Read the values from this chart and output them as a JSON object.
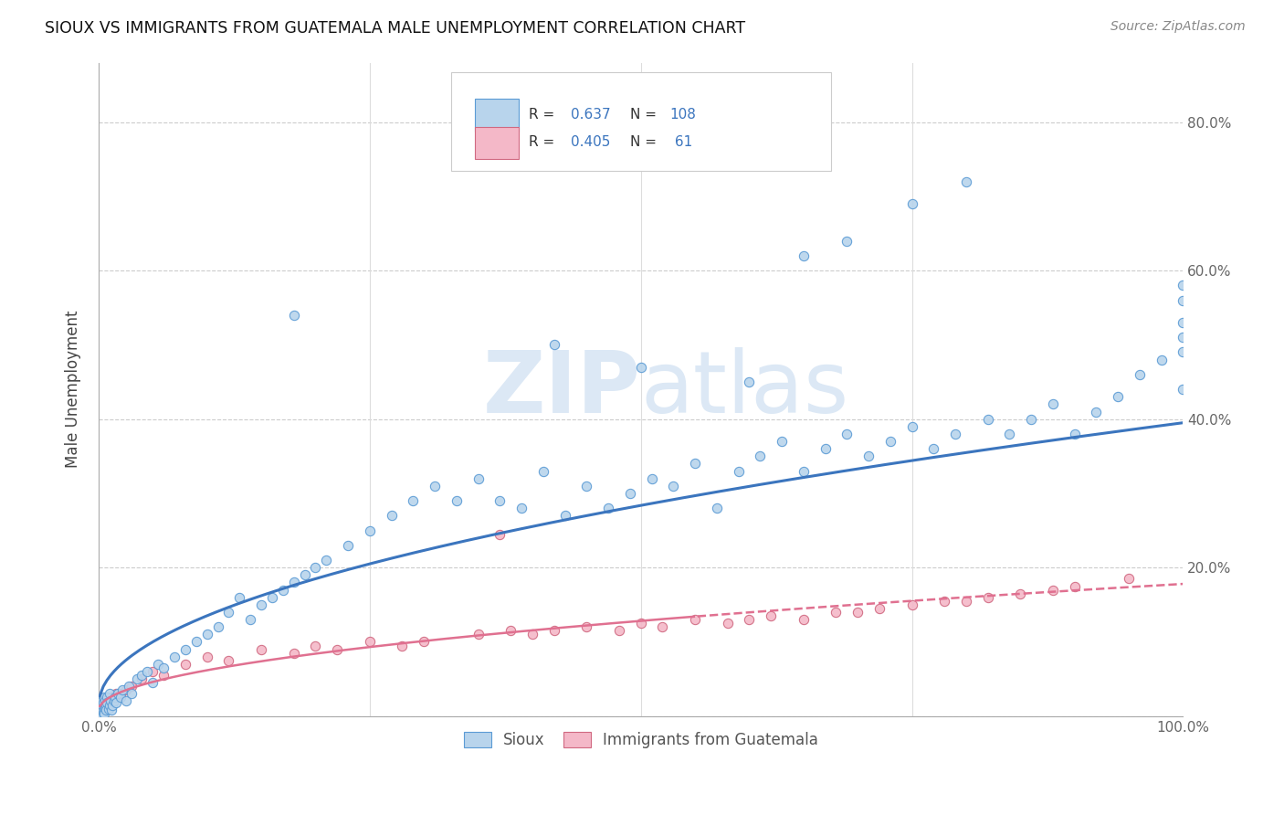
{
  "title": "SIOUX VS IMMIGRANTS FROM GUATEMALA MALE UNEMPLOYMENT CORRELATION CHART",
  "source": "Source: ZipAtlas.com",
  "ylabel": "Male Unemployment",
  "legend_label1": "Sioux",
  "legend_label2": "Immigrants from Guatemala",
  "R1": "0.637",
  "N1": "108",
  "R2": "0.405",
  "N2": "61",
  "color_sioux_fill": "#b8d4ec",
  "color_sioux_edge": "#5b9bd5",
  "color_guatemala_fill": "#f4b8c8",
  "color_guatemala_edge": "#d06880",
  "color_sioux_line": "#3b75be",
  "color_guatemala_line": "#e07090",
  "watermark_color": "#dce8f5",
  "xlim": [
    0.0,
    1.0
  ],
  "ylim": [
    0.0,
    0.88
  ],
  "ytick_vals": [
    0.0,
    0.2,
    0.4,
    0.6,
    0.8
  ],
  "ytick_labels": [
    "",
    "20.0%",
    "40.0%",
    "60.0%",
    "80.0%"
  ],
  "xtick_vals": [
    0.0,
    1.0
  ],
  "xtick_labels": [
    "0.0%",
    "100.0%"
  ],
  "sioux_x": [
    0.001,
    0.001,
    0.001,
    0.002,
    0.002,
    0.002,
    0.003,
    0.003,
    0.003,
    0.004,
    0.004,
    0.005,
    0.005,
    0.005,
    0.006,
    0.006,
    0.007,
    0.007,
    0.008,
    0.008,
    0.009,
    0.01,
    0.01,
    0.011,
    0.012,
    0.013,
    0.014,
    0.015,
    0.016,
    0.018,
    0.02,
    0.022,
    0.025,
    0.028,
    0.03,
    0.035,
    0.04,
    0.045,
    0.05,
    0.055,
    0.06,
    0.07,
    0.08,
    0.09,
    0.1,
    0.11,
    0.12,
    0.13,
    0.14,
    0.15,
    0.16,
    0.17,
    0.18,
    0.19,
    0.2,
    0.21,
    0.23,
    0.25,
    0.27,
    0.29,
    0.31,
    0.33,
    0.35,
    0.37,
    0.39,
    0.41,
    0.43,
    0.45,
    0.47,
    0.49,
    0.51,
    0.53,
    0.55,
    0.57,
    0.59,
    0.61,
    0.63,
    0.65,
    0.67,
    0.69,
    0.71,
    0.73,
    0.75,
    0.77,
    0.79,
    0.82,
    0.84,
    0.86,
    0.88,
    0.9,
    0.92,
    0.94,
    0.96,
    0.98,
    1.0,
    1.0,
    1.0,
    1.0,
    1.0,
    1.0,
    0.18,
    0.42,
    0.5,
    0.6,
    0.65,
    0.69,
    0.75,
    0.8
  ],
  "sioux_y": [
    0.005,
    0.008,
    0.012,
    0.003,
    0.015,
    0.01,
    0.008,
    0.02,
    0.015,
    0.005,
    0.018,
    0.01,
    0.025,
    0.003,
    0.012,
    0.02,
    0.015,
    0.008,
    0.025,
    0.018,
    0.01,
    0.03,
    0.015,
    0.02,
    0.008,
    0.015,
    0.02,
    0.025,
    0.018,
    0.03,
    0.025,
    0.035,
    0.02,
    0.04,
    0.03,
    0.05,
    0.055,
    0.06,
    0.045,
    0.07,
    0.065,
    0.08,
    0.09,
    0.1,
    0.11,
    0.12,
    0.14,
    0.16,
    0.13,
    0.15,
    0.16,
    0.17,
    0.18,
    0.19,
    0.2,
    0.21,
    0.23,
    0.25,
    0.27,
    0.29,
    0.31,
    0.29,
    0.32,
    0.29,
    0.28,
    0.33,
    0.27,
    0.31,
    0.28,
    0.3,
    0.32,
    0.31,
    0.34,
    0.28,
    0.33,
    0.35,
    0.37,
    0.33,
    0.36,
    0.38,
    0.35,
    0.37,
    0.39,
    0.36,
    0.38,
    0.4,
    0.38,
    0.4,
    0.42,
    0.38,
    0.41,
    0.43,
    0.46,
    0.48,
    0.44,
    0.49,
    0.51,
    0.53,
    0.56,
    0.58,
    0.54,
    0.5,
    0.47,
    0.45,
    0.62,
    0.64,
    0.69,
    0.72
  ],
  "guatemala_x": [
    0.001,
    0.001,
    0.002,
    0.002,
    0.003,
    0.003,
    0.004,
    0.004,
    0.005,
    0.005,
    0.006,
    0.007,
    0.008,
    0.009,
    0.01,
    0.011,
    0.012,
    0.014,
    0.016,
    0.018,
    0.02,
    0.025,
    0.03,
    0.04,
    0.05,
    0.06,
    0.08,
    0.1,
    0.12,
    0.15,
    0.18,
    0.2,
    0.22,
    0.25,
    0.28,
    0.3,
    0.35,
    0.38,
    0.4,
    0.42,
    0.45,
    0.48,
    0.5,
    0.52,
    0.55,
    0.58,
    0.6,
    0.62,
    0.65,
    0.68,
    0.7,
    0.72,
    0.75,
    0.78,
    0.8,
    0.82,
    0.85,
    0.88,
    0.9,
    0.95,
    0.37
  ],
  "guatemala_y": [
    0.003,
    0.008,
    0.005,
    0.012,
    0.008,
    0.015,
    0.01,
    0.018,
    0.008,
    0.02,
    0.015,
    0.012,
    0.018,
    0.015,
    0.02,
    0.015,
    0.025,
    0.02,
    0.03,
    0.025,
    0.03,
    0.035,
    0.04,
    0.05,
    0.06,
    0.055,
    0.07,
    0.08,
    0.075,
    0.09,
    0.085,
    0.095,
    0.09,
    0.1,
    0.095,
    0.1,
    0.11,
    0.115,
    0.11,
    0.115,
    0.12,
    0.115,
    0.125,
    0.12,
    0.13,
    0.125,
    0.13,
    0.135,
    0.13,
    0.14,
    0.14,
    0.145,
    0.15,
    0.155,
    0.155,
    0.16,
    0.165,
    0.17,
    0.175,
    0.185,
    0.245
  ]
}
